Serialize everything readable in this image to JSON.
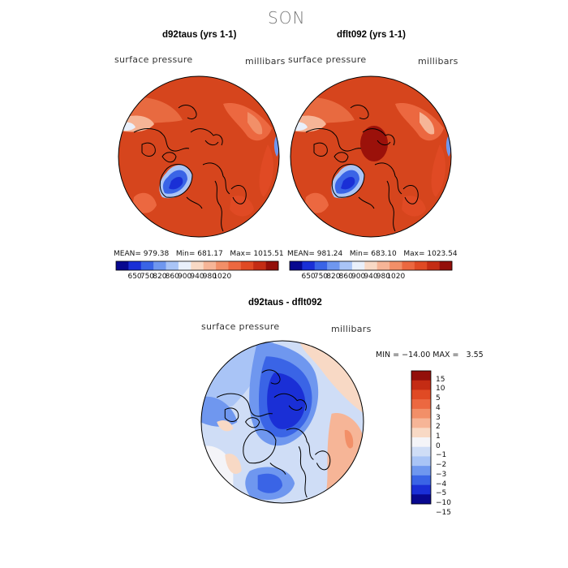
{
  "season": "SON",
  "panels": [
    {
      "title": "d92taus (yrs 1-1)",
      "variable_label": "surface pressure",
      "units_label": "millibars",
      "stats": {
        "mean_label": "MEAN=",
        "mean": "979.38",
        "min_label": "Min=",
        "min": "681.17",
        "max_label": "Max=",
        "max": "1015.51"
      },
      "colorbar_ticks": [
        "650",
        "750",
        "820",
        "860",
        "900",
        "940",
        "980",
        "1020"
      ]
    },
    {
      "title": "dflt092 (yrs 1-1)",
      "variable_label": "surface pressure",
      "units_label": "millibars",
      "stats": {
        "mean_label": "MEAN=",
        "mean": "981.24",
        "min_label": "Min=",
        "min": "683.10",
        "max_label": "Max=",
        "max": "1023.54"
      },
      "colorbar_ticks": [
        "650",
        "750",
        "820",
        "860",
        "900",
        "940",
        "980",
        "1020"
      ]
    }
  ],
  "diff_panel": {
    "title": "d92taus - dflt092",
    "variable_label": "surface pressure",
    "units_label": "millibars",
    "minmax_text": "MIN = −14.00 MAX =   3.55",
    "colorbar_ticks": [
      "15",
      "10",
      "5",
      "4",
      "3",
      "2",
      "1",
      "0",
      "−1",
      "−2",
      "−3",
      "−4",
      "−5",
      "−10",
      "−15"
    ]
  },
  "colors": {
    "abs_scale": [
      "#08088f",
      "#1a2fd6",
      "#3a64e6",
      "#6f97ef",
      "#a9c4f6",
      "#e9f0fb",
      "#f8d9c5",
      "#f6b597",
      "#f28f68",
      "#ec6840",
      "#e04a24",
      "#c42c14",
      "#930f0a"
    ],
    "diff_scale_top_to_bottom": [
      "#930f0a",
      "#c42c14",
      "#e04a24",
      "#ec6840",
      "#f28f68",
      "#f6b597",
      "#f8d9c5",
      "#f4f4f8",
      "#cfddf6",
      "#a9c4f6",
      "#6f97ef",
      "#3a64e6",
      "#1a2fd6",
      "#08088f"
    ],
    "map_base_red": "#d6451d",
    "map_deep_red": "#9b110a",
    "map_blue": "#2b55e0",
    "coastline": "#000000"
  }
}
